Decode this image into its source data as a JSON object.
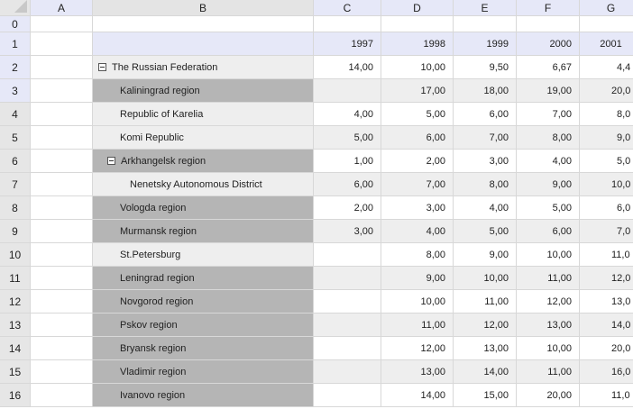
{
  "columns": [
    "A",
    "B",
    "C",
    "D",
    "E",
    "F",
    "G"
  ],
  "row_numbers": [
    "0",
    "1",
    "2",
    "3",
    "4",
    "5",
    "6",
    "7",
    "8",
    "9",
    "10",
    "11",
    "12",
    "13",
    "14",
    "15",
    "16"
  ],
  "years": [
    "1997",
    "1998",
    "1999",
    "2000",
    "2001"
  ],
  "colors": {
    "header_bg": "#e6e8f8",
    "highlight_row_bg": "#b5b5b5",
    "alt_row_bg": "#eeeeee"
  },
  "rows": [
    {
      "name": "The Russian Federation",
      "level": 0,
      "toggle": "collapse-icon",
      "dark": false,
      "values": [
        "14,00",
        "10,00",
        "9,50",
        "6,67",
        "4,4"
      ]
    },
    {
      "name": "Kaliningrad region",
      "level": 1,
      "dark": true,
      "values": [
        "",
        "17,00",
        "18,00",
        "19,00",
        "20,0"
      ]
    },
    {
      "name": "Republic of Karelia",
      "level": 1,
      "dark": false,
      "values": [
        "4,00",
        "5,00",
        "6,00",
        "7,00",
        "8,0"
      ]
    },
    {
      "name": "Komi Republic",
      "level": 1,
      "dark": false,
      "values": [
        "5,00",
        "6,00",
        "7,00",
        "8,00",
        "9,0"
      ]
    },
    {
      "name": "Arkhangelsk region",
      "level": 1,
      "toggle": "collapse-icon",
      "dark": true,
      "values": [
        "1,00",
        "2,00",
        "3,00",
        "4,00",
        "5,0"
      ]
    },
    {
      "name": "Nenetsky Autonomous District",
      "level": 2,
      "dark": false,
      "values": [
        "6,00",
        "7,00",
        "8,00",
        "9,00",
        "10,0"
      ]
    },
    {
      "name": "Vologda region",
      "level": 1,
      "dark": true,
      "values": [
        "2,00",
        "3,00",
        "4,00",
        "5,00",
        "6,0"
      ]
    },
    {
      "name": "Murmansk region",
      "level": 1,
      "dark": true,
      "values": [
        "3,00",
        "4,00",
        "5,00",
        "6,00",
        "7,0"
      ]
    },
    {
      "name": "St.Petersburg",
      "level": 1,
      "dark": false,
      "values": [
        "",
        "8,00",
        "9,00",
        "10,00",
        "11,0"
      ]
    },
    {
      "name": "Leningrad region",
      "level": 1,
      "dark": true,
      "values": [
        "",
        "9,00",
        "10,00",
        "11,00",
        "12,0"
      ]
    },
    {
      "name": "Novgorod region",
      "level": 1,
      "dark": true,
      "values": [
        "",
        "10,00",
        "11,00",
        "12,00",
        "13,0"
      ]
    },
    {
      "name": "Pskov region",
      "level": 1,
      "dark": true,
      "values": [
        "",
        "11,00",
        "12,00",
        "13,00",
        "14,0"
      ]
    },
    {
      "name": "Bryansk region",
      "level": 1,
      "dark": true,
      "values": [
        "",
        "12,00",
        "13,00",
        "10,00",
        "20,0"
      ]
    },
    {
      "name": "Vladimir region",
      "level": 1,
      "dark": true,
      "values": [
        "",
        "13,00",
        "14,00",
        "11,00",
        "16,0"
      ]
    },
    {
      "name": "Ivanovo region",
      "level": 1,
      "dark": true,
      "values": [
        "",
        "14,00",
        "15,00",
        "20,00",
        "11,0"
      ]
    }
  ]
}
